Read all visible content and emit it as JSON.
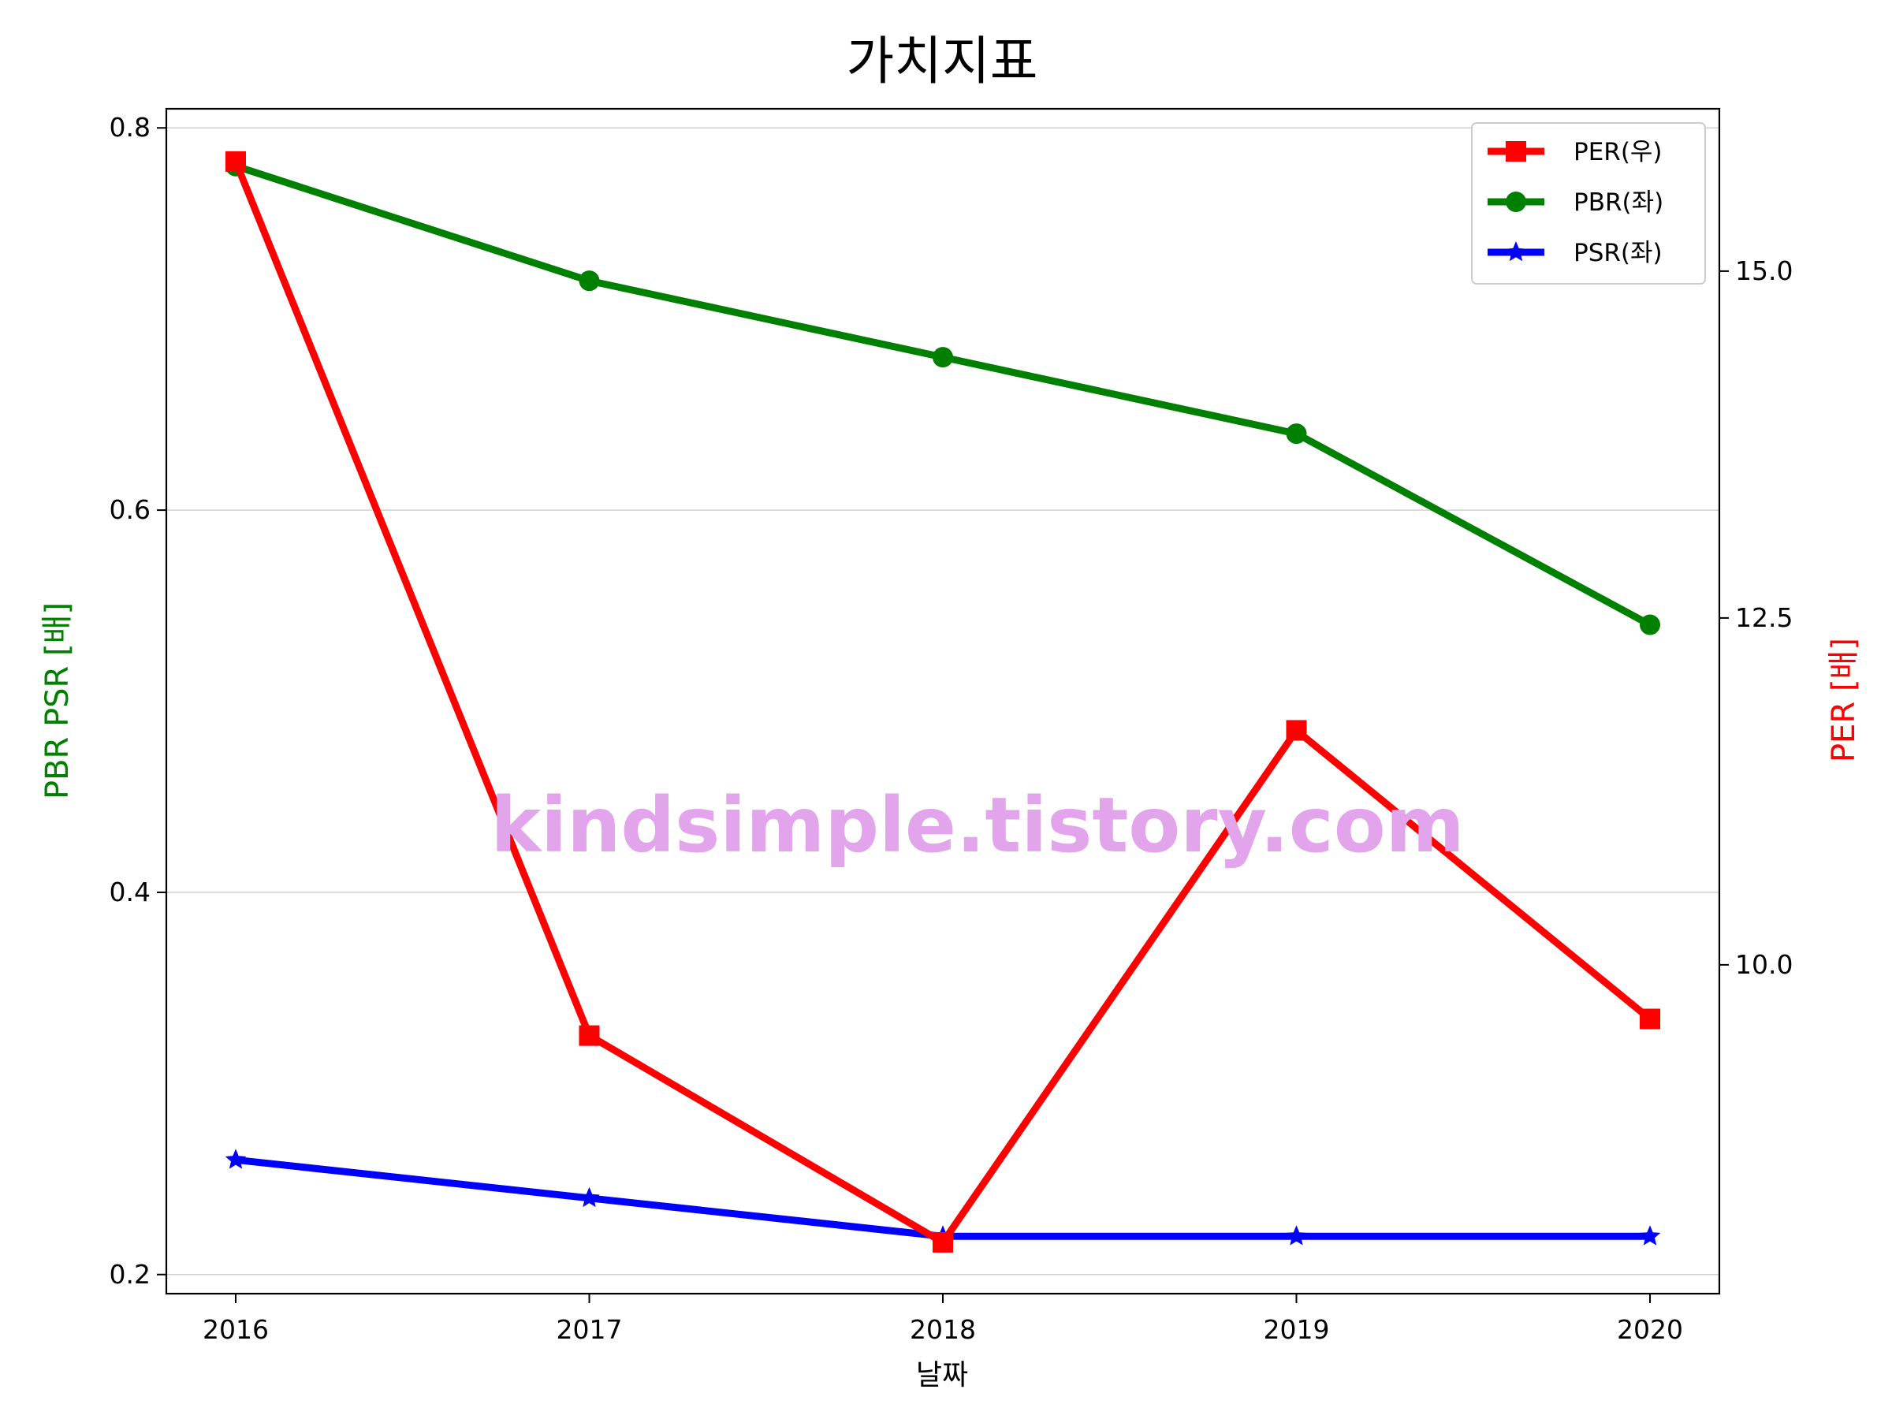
{
  "chart_data": {
    "type": "line",
    "title": "가치지표",
    "xlabel": "날짜",
    "ylabel_left": "PBR PSR [배]",
    "ylabel_right": "PER [배]",
    "categories": [
      "2016",
      "2017",
      "2018",
      "2019",
      "2020"
    ],
    "ylim_left": [
      0.19,
      0.81
    ],
    "ylim_right": [
      7.63,
      16.17
    ],
    "yticks_left": [
      "0.2",
      "0.4",
      "0.6",
      "0.8"
    ],
    "yticks_right": [
      "10.0",
      "12.5",
      "15.0"
    ],
    "grid": "horizontal (left axis)",
    "legend_position": "top-right",
    "watermark": "kindsimple.tistory.com",
    "colors": {
      "per": "#ff0000",
      "pbr": "#008000",
      "psr": "#0000ff",
      "watermark": "#e2a5ec",
      "left_label": "#008000",
      "right_label": "#ff0000"
    },
    "series": [
      {
        "name": "PER(우)",
        "axis": "right",
        "marker": "square",
        "values": [
          15.79,
          9.49,
          8.0,
          11.69,
          9.61
        ]
      },
      {
        "name": "PBR(좌)",
        "axis": "left",
        "marker": "circle",
        "values": [
          0.78,
          0.72,
          0.68,
          0.64,
          0.54
        ]
      },
      {
        "name": "PSR(좌)",
        "axis": "left",
        "marker": "star",
        "values": [
          0.26,
          0.24,
          0.22,
          0.22,
          0.22
        ]
      }
    ]
  }
}
